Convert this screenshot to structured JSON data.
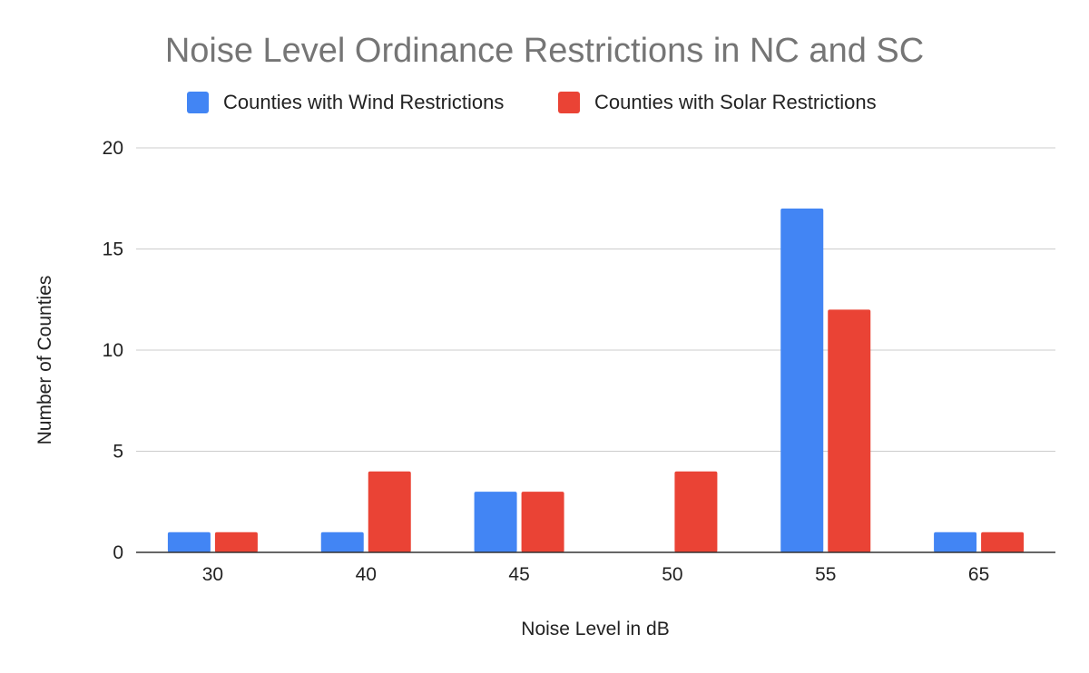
{
  "chart_data": {
    "type": "bar",
    "title": "Noise Level Ordinance Restrictions in NC and SC",
    "xlabel": "Noise Level in dB",
    "ylabel": "Number of Counties",
    "categories": [
      "30",
      "40",
      "45",
      "50",
      "55",
      "65"
    ],
    "series": [
      {
        "name": "Counties with Wind Restrictions",
        "color": "#4285f4",
        "values": [
          1,
          1,
          3,
          0,
          17,
          1
        ]
      },
      {
        "name": "Counties with Solar Restrictions",
        "color": "#ea4335",
        "values": [
          1,
          4,
          3,
          4,
          12,
          1
        ]
      }
    ],
    "ylim": [
      0,
      20
    ],
    "yticks": [
      "0",
      "5",
      "10",
      "15",
      "20"
    ],
    "grid": true,
    "legend_position": "top"
  }
}
